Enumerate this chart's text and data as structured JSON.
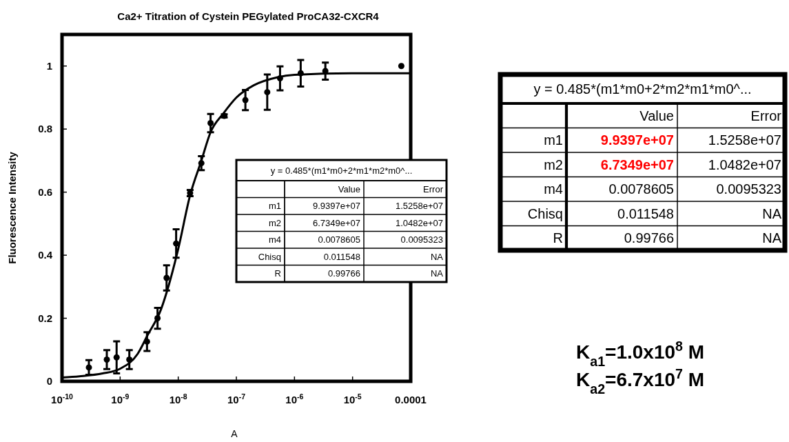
{
  "chart_data": {
    "type": "scatter",
    "title": "Ca2+ Titration of Cystein PEGylated ProCA32-CXCR4",
    "ylabel": "Fluorescence Intensity",
    "log": "x",
    "xlim": [
      1e-10,
      0.0001
    ],
    "xticks": [
      {
        "value": 1e-10,
        "label": "10$^{-10}$"
      },
      {
        "value": 1e-09,
        "label": "10$^{-9}$"
      },
      {
        "value": 1e-08,
        "label": "10$^{-8}$"
      },
      {
        "value": 1e-07,
        "label": "10$^{-7}$"
      },
      {
        "value": 1e-06,
        "label": "10$^{-6}$"
      },
      {
        "value": 1e-05,
        "label": "10$^{-5}$"
      },
      0.0001
    ],
    "ylim": [
      0,
      1.1
    ],
    "yticks": [
      0,
      0.2,
      0.4,
      0.6,
      0.8,
      1
    ],
    "series": [
      {
        "marker": "circle",
        "color": "#000000",
        "x": [
          2.9e-10,
          5.9e-10,
          8.7e-10,
          1.44e-09,
          2.9e-09,
          4.4e-09,
          6.3e-09,
          9.2e-09,
          1.6e-08,
          2.5e-08,
          3.6e-08,
          6.2e-08,
          1.43e-07,
          3.4e-07,
          5.65e-07,
          1.28e-06,
          3.4e-06,
          6.9e-05
        ],
        "values": [
          0.044,
          0.069,
          0.076,
          0.069,
          0.126,
          0.2,
          0.328,
          0.437,
          0.597,
          0.692,
          0.819,
          0.842,
          0.892,
          0.917,
          0.961,
          0.977,
          0.984,
          1.0
        ],
        "errors": [
          0.023,
          0.03,
          0.051,
          0.03,
          0.03,
          0.033,
          0.04,
          0.045,
          0.01,
          0.022,
          0.029,
          0.005,
          0.032,
          0.056,
          0.038,
          0.042,
          0.027,
          null
        ]
      },
      {
        "type": "line",
        "color": "#000000",
        "x": [
          1e-10,
          2e-10,
          5e-10,
          1e-09,
          2e-09,
          3e-09,
          5e-09,
          7e-09,
          1e-08,
          1.6e-08,
          2.5e-08,
          3.6e-08,
          6e-08,
          1e-07,
          2e-07,
          5e-07,
          1e-06,
          1e-05,
          0.0001
        ],
        "values": [
          0.012,
          0.016,
          0.025,
          0.04,
          0.087,
          0.148,
          0.226,
          0.31,
          0.42,
          0.59,
          0.7,
          0.79,
          0.85,
          0.9,
          0.939,
          0.964,
          0.972,
          0.977,
          0.977
        ]
      }
    ],
    "annotations": [
      "y = 0.485*(m1*m0+2*m1*m2*m0^...",
      "Value",
      "Error",
      "m1",
      "9.9397e+07",
      "1.5258e+07",
      "m2",
      "6.7349e+07",
      "1.0482e+07",
      "m4",
      "0.0078605",
      "0.0095323",
      "Chisq",
      "0.011548",
      "NA",
      "R",
      "0.99766",
      "NA",
      "y = 0.485*(m1*m0+2*m2*m1*m0^...",
      "Value",
      "Error",
      "m1",
      "9.9397e+07",
      "1.5258e+07",
      "m2",
      "6.7349e+07",
      "1.0482e+07",
      "m4",
      "0.0078605",
      "0.0095323",
      "Chisq",
      "0.011548",
      "NA",
      "R",
      "0.99766",
      "NA",
      "K$_{a1}$=1.0x10$^{8}$ M",
      "K$_{a2}$=6.7x10$^{7}$ M",
      "A"
    ]
  }
}
